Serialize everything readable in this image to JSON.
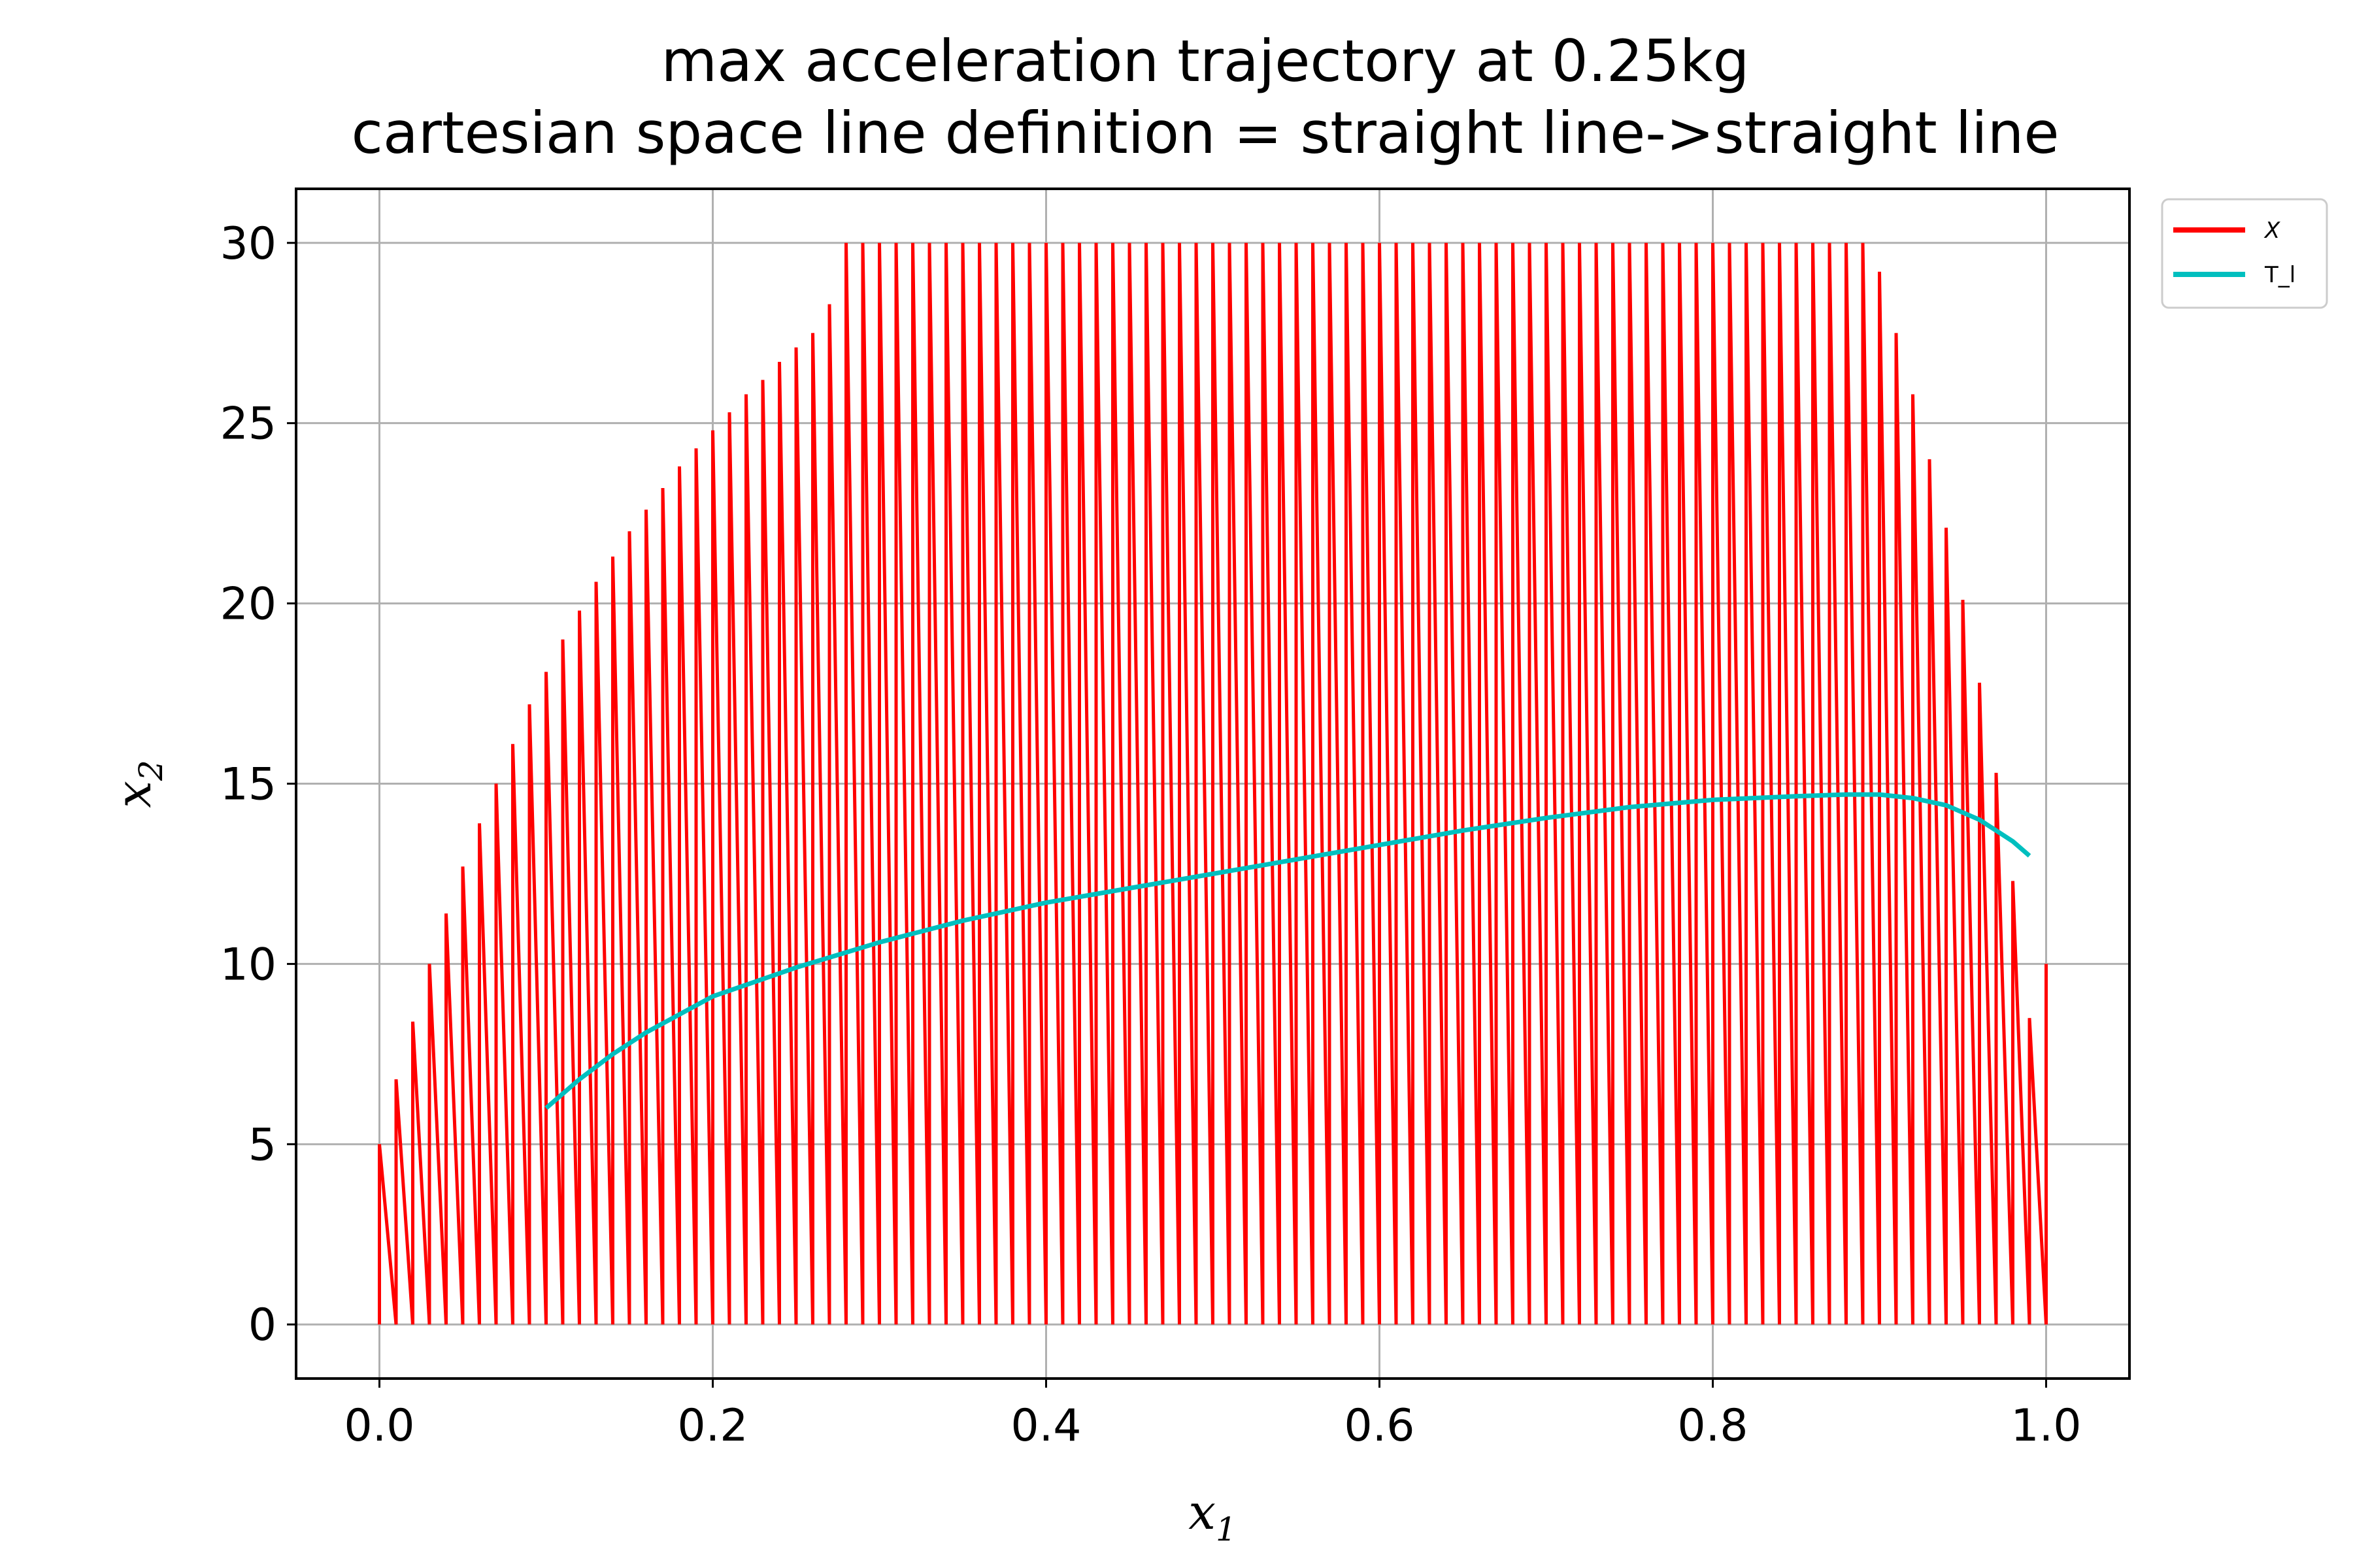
{
  "chart_data": {
    "type": "line",
    "title": "max acceleration trajectory at 0.25kg",
    "subtitle": "cartesian space line definition = straight line->straight line",
    "xlabel": "x",
    "xlabel_sub": "1",
    "ylabel": "x",
    "ylabel_sub": "2",
    "xlim": [
      -0.05,
      1.05
    ],
    "ylim": [
      -1.5,
      31.5
    ],
    "xticks": [
      0.0,
      0.2,
      0.4,
      0.6,
      0.8,
      1.0
    ],
    "xtick_labels": [
      "0.0",
      "0.2",
      "0.4",
      "0.6",
      "0.8",
      "1.0"
    ],
    "yticks": [
      0,
      5,
      10,
      15,
      20,
      25,
      30
    ],
    "ytick_labels": [
      "0",
      "5",
      "10",
      "15",
      "20",
      "25",
      "30"
    ],
    "grid": true,
    "legend_position": "outside-top-right",
    "series": [
      {
        "name": "X",
        "color": "#ff0000",
        "style": "sawtooth: vertical rises from x2=0 to the envelope value at each x1 step of 0.01, then linear drop to x2=0 at the next step",
        "envelope_x": [
          0.0,
          0.01,
          0.02,
          0.03,
          0.04,
          0.05,
          0.06,
          0.07,
          0.08,
          0.09,
          0.1,
          0.11,
          0.12,
          0.13,
          0.14,
          0.15,
          0.16,
          0.17,
          0.18,
          0.19,
          0.2,
          0.21,
          0.22,
          0.23,
          0.24,
          0.25,
          0.26,
          0.27,
          0.28,
          0.29,
          0.3,
          0.31,
          0.32,
          0.33,
          0.34,
          0.35,
          0.36,
          0.37,
          0.38,
          0.39,
          0.4,
          0.41,
          0.42,
          0.43,
          0.44,
          0.45,
          0.46,
          0.47,
          0.48,
          0.49,
          0.5,
          0.51,
          0.52,
          0.53,
          0.54,
          0.55,
          0.56,
          0.57,
          0.58,
          0.59,
          0.6,
          0.61,
          0.62,
          0.63,
          0.64,
          0.65,
          0.66,
          0.67,
          0.68,
          0.69,
          0.7,
          0.71,
          0.72,
          0.73,
          0.74,
          0.75,
          0.76,
          0.77,
          0.78,
          0.79,
          0.8,
          0.81,
          0.82,
          0.83,
          0.84,
          0.85,
          0.86,
          0.87,
          0.88,
          0.89,
          0.9,
          0.91,
          0.92,
          0.93,
          0.94,
          0.95,
          0.96,
          0.97,
          0.98,
          0.99,
          1.0
        ],
        "envelope_y": [
          5.0,
          6.8,
          8.4,
          10.0,
          11.4,
          12.7,
          13.9,
          15.0,
          16.1,
          17.2,
          18.1,
          19.0,
          19.8,
          20.6,
          21.3,
          22.0,
          22.6,
          23.2,
          23.8,
          24.3,
          24.8,
          25.3,
          25.8,
          26.2,
          26.7,
          27.1,
          27.5,
          28.3,
          30.0,
          30.0,
          30.0,
          30.0,
          30.0,
          30.0,
          30.0,
          30.0,
          30.0,
          30.0,
          30.0,
          30.0,
          30.0,
          30.0,
          30.0,
          30.0,
          30.0,
          30.0,
          30.0,
          30.0,
          30.0,
          30.0,
          30.0,
          30.0,
          30.0,
          30.0,
          30.0,
          30.0,
          30.0,
          30.0,
          30.0,
          30.0,
          30.0,
          30.0,
          30.0,
          30.0,
          30.0,
          30.0,
          30.0,
          30.0,
          30.0,
          30.0,
          30.0,
          30.0,
          30.0,
          30.0,
          30.0,
          30.0,
          30.0,
          30.0,
          30.0,
          30.0,
          30.0,
          30.0,
          30.0,
          30.0,
          30.0,
          30.0,
          30.0,
          30.0,
          30.0,
          30.0,
          29.2,
          27.5,
          25.8,
          24.0,
          22.1,
          20.1,
          17.8,
          15.3,
          12.3,
          8.5,
          10.0
        ]
      },
      {
        "name": "T_l",
        "color": "#00bfbf",
        "x": [
          0.1,
          0.12,
          0.14,
          0.16,
          0.18,
          0.2,
          0.25,
          0.3,
          0.35,
          0.4,
          0.45,
          0.5,
          0.55,
          0.6,
          0.65,
          0.7,
          0.75,
          0.8,
          0.85,
          0.88,
          0.9,
          0.92,
          0.94,
          0.96,
          0.98,
          0.99
        ],
        "y": [
          6.0,
          6.8,
          7.5,
          8.1,
          8.6,
          9.1,
          9.9,
          10.6,
          11.2,
          11.7,
          12.1,
          12.5,
          12.9,
          13.3,
          13.7,
          14.05,
          14.35,
          14.55,
          14.65,
          14.7,
          14.7,
          14.6,
          14.4,
          14.0,
          13.4,
          13.0
        ]
      }
    ]
  }
}
